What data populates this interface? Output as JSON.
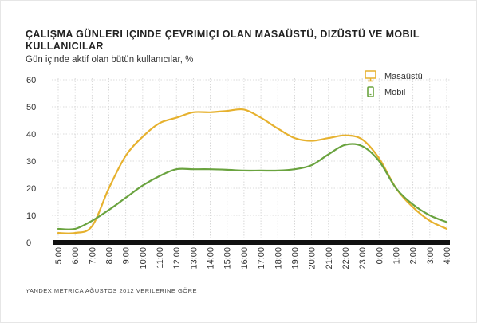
{
  "chart_data": {
    "type": "line",
    "title": "ÇALIŞMA GÜNLERI IÇINDE ÇEVRIMIÇI OLAN MASAÜSTÜ, DIZÜSTÜ VE MOBIL KULLANICILAR",
    "subtitle": "Gün içinde aktif olan bütün kullanıcılar,  %",
    "source": "YANDEX.METRICA AĞUSTOS 2012 VERILERINE GÖRE",
    "xlabel": "",
    "ylabel": "",
    "ylim": [
      0,
      60
    ],
    "yticks": [
      "0",
      "10",
      "20",
      "30",
      "40",
      "50",
      "60"
    ],
    "categories": [
      "5:00",
      "6:00",
      "7:00",
      "8:00",
      "9:00",
      "10:00",
      "11:00",
      "12:00",
      "13:00",
      "14:00",
      "15:00",
      "16:00",
      "17:00",
      "18:00",
      "19:00",
      "20:00",
      "21:00",
      "22:00",
      "23:00",
      "0:00",
      "1:00",
      "2:00",
      "3:00",
      "4:00"
    ],
    "grid": true,
    "legend_position": "top-right",
    "series": [
      {
        "name": "Masaüstü",
        "color": "#e6b12e",
        "icon": "desktop-icon",
        "values": [
          3.5,
          3.5,
          6,
          20,
          32,
          39,
          44,
          46,
          48,
          48,
          48.5,
          49,
          46,
          42,
          38.5,
          37.5,
          38.5,
          39.5,
          38,
          31,
          20,
          13,
          8,
          5
        ]
      },
      {
        "name": "Mobil",
        "color": "#6aa33f",
        "icon": "phone-icon",
        "values": [
          5,
          5,
          8,
          12,
          16.5,
          21,
          24.5,
          27,
          27,
          27,
          26.8,
          26.5,
          26.5,
          26.5,
          27,
          28.5,
          32.5,
          36,
          35.5,
          30,
          20,
          14,
          10,
          7.5
        ]
      }
    ]
  }
}
